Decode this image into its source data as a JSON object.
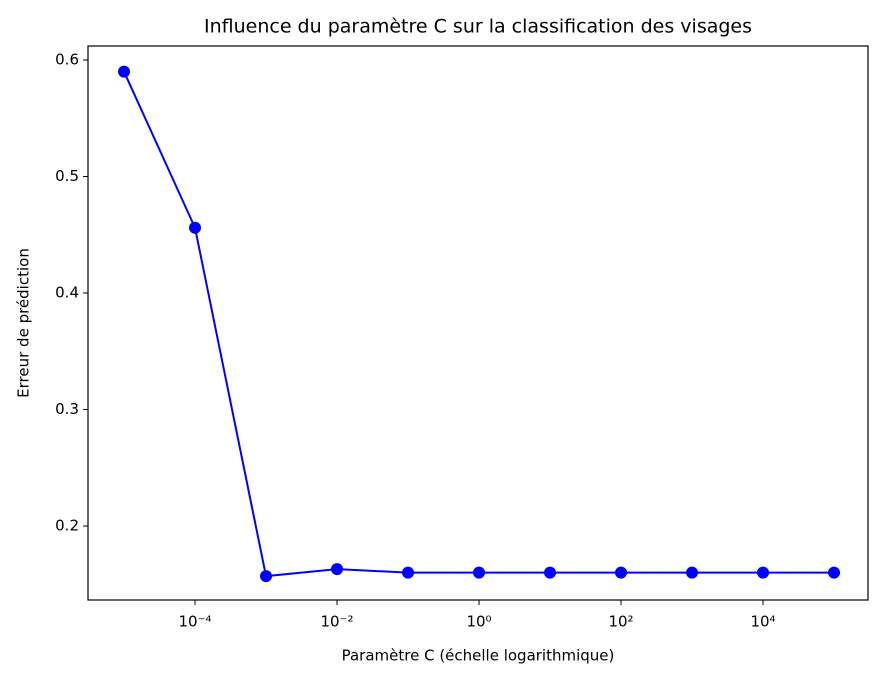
{
  "chart_data": {
    "type": "line",
    "title": "Influence du paramètre C sur la classification des visages",
    "x_label": "Paramètre C (échelle logarithmique)",
    "y_label": "Erreur de prédiction",
    "x": [
      1e-05,
      0.0001,
      0.001,
      0.01,
      0.1,
      1,
      10,
      100,
      1000,
      10000,
      100000
    ],
    "series": [
      {
        "name": "Erreur",
        "color": "#0000ff",
        "values": [
          0.59,
          0.456,
          0.157,
          0.163,
          0.16,
          0.16,
          0.16,
          0.16,
          0.16,
          0.16,
          0.16
        ]
      }
    ],
    "x_log": true,
    "xlim": [
      3.11e-06,
      301000.0
    ],
    "xticks": [
      {
        "value": 0.0001,
        "label": "10⁻⁴"
      },
      {
        "value": 0.01,
        "label": "10⁻²"
      },
      {
        "value": 1,
        "label": "10⁰"
      },
      {
        "value": 100,
        "label": "10²"
      },
      {
        "value": 10000,
        "label": "10⁴"
      }
    ],
    "ylim": [
      0.1365,
      0.612
    ],
    "yticks": [
      0.2,
      0.3,
      0.4,
      0.5,
      0.6
    ],
    "grid": false
  }
}
